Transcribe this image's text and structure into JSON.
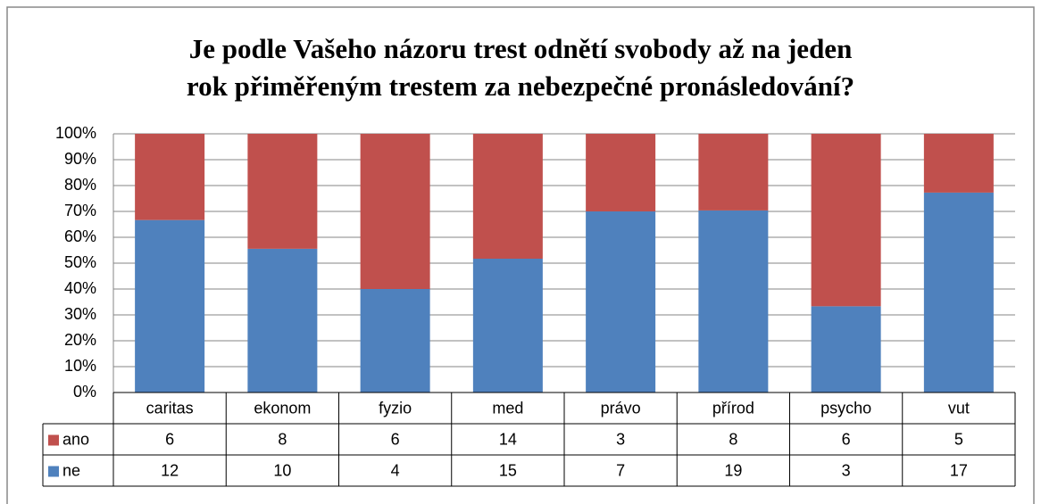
{
  "chart_data": {
    "type": "bar",
    "stacking": "percent",
    "title": [
      "Je podle Vašeho názoru trest odnětí svobody až na jeden",
      "rok přiměřeným trestem za nebezpečné pronásledování?"
    ],
    "categories": [
      "caritas",
      "ekonom",
      "fyzio",
      "med",
      "právo",
      "přírod",
      "psycho",
      "vut"
    ],
    "series": [
      {
        "name": "ano",
        "color": "#c0504d",
        "values": [
          6,
          8,
          6,
          14,
          3,
          8,
          6,
          5
        ]
      },
      {
        "name": "ne",
        "color": "#4f81bd",
        "values": [
          12,
          10,
          4,
          15,
          7,
          19,
          3,
          17
        ]
      }
    ],
    "ylim": [
      0,
      100
    ],
    "yticks": [
      {
        "value": 0,
        "label": "0%"
      },
      {
        "value": 10,
        "label": "10%"
      },
      {
        "value": 20,
        "label": "20%"
      },
      {
        "value": 30,
        "label": "30%"
      },
      {
        "value": 40,
        "label": "40%"
      },
      {
        "value": 50,
        "label": "50%"
      },
      {
        "value": 60,
        "label": "60%"
      },
      {
        "value": 70,
        "label": "70%"
      },
      {
        "value": 80,
        "label": "80%"
      },
      {
        "value": 90,
        "label": "90%"
      },
      {
        "value": 100,
        "label": "100%"
      }
    ],
    "grid": true,
    "data_table": true
  }
}
